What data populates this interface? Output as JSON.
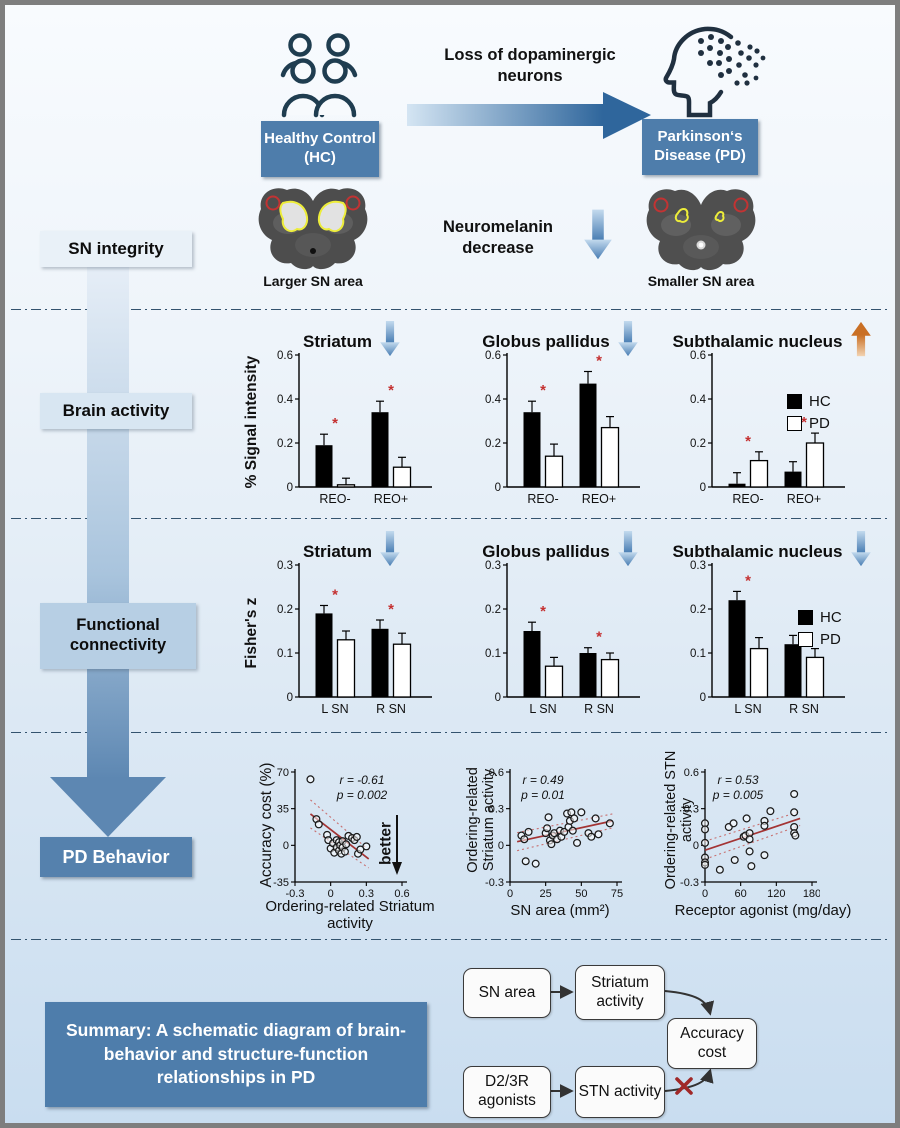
{
  "top": {
    "hc_box": "Healthy Control (HC)",
    "loss_label": "Loss of dopaminergic neurons",
    "pd_box": "Parkinson‘s Disease (PD)"
  },
  "sn_row": {
    "label": "SN integrity",
    "neuromelanin": "Neuromelanin decrease",
    "hc_caption": "Larger SN area",
    "pd_caption": "Smaller SN area"
  },
  "sections": {
    "brain_activity": "Brain activity",
    "functional_connectivity": "Functional connectivity",
    "pd_behavior": "PD Behavior"
  },
  "legend": {
    "hc": "HC",
    "pd": "PD"
  },
  "behavior": {
    "better_label": "better"
  },
  "summary": {
    "text": "Summary: A schematic diagram of brain-behavior and structure-function relationships in PD",
    "flow": {
      "sn_area": "SN area",
      "striatum_activity": "Striatum activity",
      "accuracy_cost": "Accuracy cost",
      "d23r_agonists": "D2/3R agonists",
      "stn_activity": "STN activity"
    }
  },
  "colors": {
    "accent_steel_blue": "#4e7dab",
    "label_box_light": "#e9f1f8",
    "label_box_mid": "#d8e6f2",
    "label_box_deep": "#b7cfe4",
    "bar_hc": "#000000",
    "bar_pd": "#ffffff",
    "significance_red": "#c43030",
    "regression_red": "#a33434",
    "ci_red": "#c87070",
    "trend_down_blue": "#4f83b6",
    "trend_up_orange": "#cf7630",
    "divider_navy": "#33536e",
    "frame_gray": "#7e7e7e",
    "background_top": "#f8fbfe",
    "background_bottom": "#c9ddf0"
  },
  "icons": {
    "people_group_icon": "outline of four people (healthy control group)",
    "head_dots_icon": "head profile dissolving into dots (neuron loss)",
    "right_arrow_icon": "blue gradient arrow pointing right",
    "down_arrow_icon": "blue gradient arrow pointing down",
    "up_arrow_icon": "orange gradient arrow pointing up",
    "better_arrow_icon": "black downward arrow meaning better performance",
    "red_cross_icon": "red X marking blocked pathway",
    "brain_slice_hc": "midbrain MRI slice with large yellow-outlined SN regions and red circles",
    "brain_slice_pd": "midbrain MRI slice with small yellow-outlined SN regions and red circles"
  },
  "chart_data": [
    {
      "id": "brain-activity-striatum",
      "type": "bar",
      "row": "Brain activity",
      "title": "Striatum",
      "trend": "down",
      "ylabel": "% Signal intensity",
      "ylim": [
        0,
        0.6
      ],
      "yticks": [
        0,
        0.2,
        0.4,
        0.6
      ],
      "categories": [
        "REO-",
        "REO+"
      ],
      "series": [
        {
          "name": "HC",
          "values": [
            0.19,
            0.34
          ],
          "errors": [
            0.05,
            0.05
          ]
        },
        {
          "name": "PD",
          "values": [
            0.01,
            0.09
          ],
          "errors": [
            0.03,
            0.045
          ]
        }
      ],
      "sig": [
        true,
        true
      ]
    },
    {
      "id": "brain-activity-globus-pallidus",
      "type": "bar",
      "row": "Brain activity",
      "title": "Globus pallidus",
      "trend": "down",
      "ylabel": "",
      "ylim": [
        0,
        0.6
      ],
      "yticks": [
        0,
        0.2,
        0.4,
        0.6
      ],
      "categories": [
        "REO-",
        "REO+"
      ],
      "series": [
        {
          "name": "HC",
          "values": [
            0.34,
            0.47
          ],
          "errors": [
            0.05,
            0.055
          ]
        },
        {
          "name": "PD",
          "values": [
            0.14,
            0.27
          ],
          "errors": [
            0.055,
            0.05
          ]
        }
      ],
      "sig": [
        true,
        true
      ]
    },
    {
      "id": "brain-activity-subthalamic-nucleus",
      "type": "bar",
      "row": "Brain activity",
      "title": "Subthalamic nucleus",
      "trend": "up",
      "ylabel": "",
      "ylim": [
        0,
        0.6
      ],
      "yticks": [
        0,
        0.2,
        0.4,
        0.6
      ],
      "categories": [
        "REO-",
        "REO+"
      ],
      "series": [
        {
          "name": "HC",
          "values": [
            0.015,
            0.07
          ],
          "errors": [
            0.05,
            0.045
          ]
        },
        {
          "name": "PD",
          "values": [
            0.12,
            0.2
          ],
          "errors": [
            0.04,
            0.045
          ]
        }
      ],
      "sig": [
        true,
        true
      ]
    },
    {
      "id": "functional-connectivity-striatum",
      "type": "bar",
      "row": "Functional connectivity",
      "title": "Striatum",
      "trend": "down",
      "ylabel": "Fisher's z",
      "ylim": [
        0,
        0.3
      ],
      "yticks": [
        0,
        0.1,
        0.2,
        0.3
      ],
      "categories": [
        "L SN",
        "R SN"
      ],
      "series": [
        {
          "name": "HC",
          "values": [
            0.19,
            0.155
          ],
          "errors": [
            0.018,
            0.02
          ]
        },
        {
          "name": "PD",
          "values": [
            0.13,
            0.12
          ],
          "errors": [
            0.02,
            0.025
          ]
        }
      ],
      "sig": [
        true,
        true
      ]
    },
    {
      "id": "functional-connectivity-globus-pallidus",
      "type": "bar",
      "row": "Functional connectivity",
      "title": "Globus pallidus",
      "trend": "down",
      "ylabel": "",
      "ylim": [
        0,
        0.3
      ],
      "yticks": [
        0,
        0.1,
        0.2,
        0.3
      ],
      "categories": [
        "L SN",
        "R SN"
      ],
      "series": [
        {
          "name": "HC",
          "values": [
            0.15,
            0.1
          ],
          "errors": [
            0.02,
            0.012
          ]
        },
        {
          "name": "PD",
          "values": [
            0.07,
            0.085
          ],
          "errors": [
            0.02,
            0.015
          ]
        }
      ],
      "sig": [
        true,
        true
      ]
    },
    {
      "id": "functional-connectivity-subthalamic-nucleus",
      "type": "bar",
      "row": "Functional connectivity",
      "title": "Subthalamic nucleus",
      "trend": "down",
      "ylabel": "",
      "ylim": [
        0,
        0.3
      ],
      "yticks": [
        0,
        0.1,
        0.2,
        0.3
      ],
      "categories": [
        "L SN",
        "R SN"
      ],
      "series": [
        {
          "name": "HC",
          "values": [
            0.22,
            0.12
          ],
          "errors": [
            0.02,
            0.02
          ]
        },
        {
          "name": "PD",
          "values": [
            0.11,
            0.09
          ],
          "errors": [
            0.025,
            0.02
          ]
        }
      ],
      "sig": [
        true,
        true
      ]
    },
    {
      "id": "behavior-accuracy-vs-striatum",
      "type": "scatter",
      "xlabel": "Ordering-related Striatum activity",
      "ylabel": "Accuracy cost (%)",
      "xlim": [
        -0.3,
        0.6
      ],
      "ylim": [
        -35,
        70
      ],
      "xticks": [
        -0.3,
        0,
        0.3,
        0.6
      ],
      "yticks": [
        -35,
        0,
        35,
        70
      ],
      "r_label": "r = -0.61",
      "p_label": "p = 0.002",
      "annotation_side": "right",
      "points": [
        [
          -0.17,
          63
        ],
        [
          -0.12,
          25
        ],
        [
          -0.1,
          20
        ],
        [
          -0.03,
          10
        ],
        [
          -0.02,
          5
        ],
        [
          0,
          -3
        ],
        [
          0.02,
          2
        ],
        [
          0.03,
          -7
        ],
        [
          0.05,
          5
        ],
        [
          0.05,
          -2
        ],
        [
          0.07,
          3
        ],
        [
          0.07,
          -5
        ],
        [
          0.08,
          0
        ],
        [
          0.09,
          -8
        ],
        [
          0.1,
          4
        ],
        [
          0.1,
          -2
        ],
        [
          0.12,
          -6
        ],
        [
          0.13,
          1
        ],
        [
          0.15,
          9
        ],
        [
          0.18,
          7
        ],
        [
          0.2,
          5
        ],
        [
          0.22,
          8
        ],
        [
          0.23,
          -8
        ],
        [
          0.25,
          -4
        ],
        [
          0.3,
          -1
        ]
      ],
      "regression": {
        "x": [
          -0.17,
          0.32
        ],
        "y": [
          30,
          -13
        ]
      },
      "ci_offsets": [
        14,
        9
      ]
    },
    {
      "id": "behavior-striatum-vs-sn-area",
      "type": "scatter",
      "xlabel": "SN area (mm²)",
      "ylabel": "Ordering-related Striatum activity",
      "xlim": [
        0,
        75
      ],
      "ylim": [
        -0.3,
        0.6
      ],
      "xticks": [
        0,
        25,
        50,
        75
      ],
      "yticks": [
        -0.3,
        0,
        0.3,
        0.6
      ],
      "r_label": "r = 0.49",
      "p_label": "p = 0.01",
      "annotation_side": "left",
      "points": [
        [
          8,
          0.08
        ],
        [
          10,
          0.05
        ],
        [
          11,
          -0.13
        ],
        [
          13,
          0.11
        ],
        [
          18,
          -0.15
        ],
        [
          25,
          0.1
        ],
        [
          26,
          0.14
        ],
        [
          27,
          0.23
        ],
        [
          28,
          0.04
        ],
        [
          29,
          0.01
        ],
        [
          30,
          0.08
        ],
        [
          31,
          0.1
        ],
        [
          33,
          0.05
        ],
        [
          35,
          0.12
        ],
        [
          36,
          0.07
        ],
        [
          38,
          0.11
        ],
        [
          40,
          0.26
        ],
        [
          41,
          0.15
        ],
        [
          42,
          0.2
        ],
        [
          43,
          0.27
        ],
        [
          44,
          0.12
        ],
        [
          45,
          0.22
        ],
        [
          47,
          0.02
        ],
        [
          50,
          0.27
        ],
        [
          55,
          0.1
        ],
        [
          57,
          0.07
        ],
        [
          60,
          0.22
        ],
        [
          62,
          0.09
        ],
        [
          70,
          0.18
        ]
      ],
      "regression": {
        "x": [
          5,
          72
        ],
        "y": [
          0.03,
          0.2
        ]
      },
      "ci_offsets": [
        9,
        7
      ]
    },
    {
      "id": "behavior-stn-vs-agonist",
      "type": "scatter",
      "xlabel": "Receptor agonist (mg/day)",
      "ylabel": "Ordering-related STN activity",
      "xlim": [
        0,
        180
      ],
      "ylim": [
        -0.3,
        0.6
      ],
      "xticks": [
        0,
        60,
        120,
        180
      ],
      "yticks": [
        -0.3,
        0,
        0.3,
        0.6
      ],
      "r_label": "r = 0.53",
      "p_label": "p = 0.005",
      "annotation_side": "left",
      "points": [
        [
          0,
          0.18
        ],
        [
          0,
          0.13
        ],
        [
          0,
          0.02
        ],
        [
          0,
          -0.1
        ],
        [
          0,
          -0.14
        ],
        [
          0,
          -0.16
        ],
        [
          25,
          -0.2
        ],
        [
          40,
          0.15
        ],
        [
          48,
          0.18
        ],
        [
          50,
          -0.12
        ],
        [
          65,
          0.07
        ],
        [
          68,
          0.08
        ],
        [
          70,
          0.22
        ],
        [
          75,
          0.1
        ],
        [
          75,
          0.05
        ],
        [
          75,
          -0.05
        ],
        [
          78,
          -0.17
        ],
        [
          100,
          0.2
        ],
        [
          100,
          0.16
        ],
        [
          100,
          -0.08
        ],
        [
          110,
          0.28
        ],
        [
          150,
          0.42
        ],
        [
          150,
          0.27
        ],
        [
          150,
          0.15
        ],
        [
          150,
          0.1
        ],
        [
          152,
          0.08
        ]
      ],
      "regression": {
        "x": [
          0,
          160
        ],
        "y": [
          -0.04,
          0.22
        ]
      },
      "ci_offsets": [
        9,
        7
      ]
    }
  ]
}
